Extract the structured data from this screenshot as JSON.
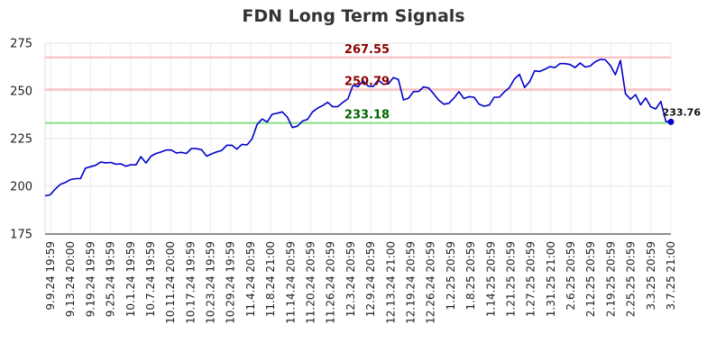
{
  "chart_data": {
    "type": "line",
    "title": "FDN Long Term Signals",
    "ylim": [
      175,
      275
    ],
    "yticks": [
      175,
      200,
      225,
      250,
      275
    ],
    "grid": true,
    "xticks": [
      "9.9.24 19:59",
      "9.13.24 20:00",
      "9.19.24 19:59",
      "9.25.24 19:59",
      "10.1.24 19:59",
      "10.7.24 19:59",
      "10.11.24 20:00",
      "10.17.24 19:59",
      "10.23.24 19:59",
      "10.29.24 19:59",
      "11.4.24 20:59",
      "11.8.24 21:00",
      "11.14.24 20:59",
      "11.20.24 20:59",
      "11.26.24 20:59",
      "12.3.24 20:59",
      "12.9.24 20:59",
      "12.13.24 21:00",
      "12.19.24 20:59",
      "12.26.24 20:59",
      "1.2.25 20:59",
      "1.8.25 20:59",
      "1.14.25 20:59",
      "1.21.25 20:59",
      "1.27.25 20:59",
      "1.31.25 21:00",
      "2.6.25 20:59",
      "2.12.25 20:59",
      "2.19.25 20:59",
      "2.25.25 20:59",
      "3.3.25 20:59",
      "3.7.25 21:00"
    ],
    "series": [
      {
        "color": "#0000cc",
        "values": [
          195,
          195.5,
          198.5,
          201,
          202,
          203.5,
          204,
          204,
          209.5,
          210.3,
          211,
          212.7,
          212.3,
          212.5,
          211.6,
          211.8,
          210.5,
          211.3,
          211.2,
          215.5,
          212.2,
          215.8,
          217.2,
          218,
          219,
          219,
          217.5,
          217.8,
          217.2,
          219.8,
          219.7,
          219.2,
          215.8,
          217,
          218,
          218.8,
          221.5,
          221.5,
          219.5,
          222,
          221.7,
          224.8,
          232.4,
          235.3,
          233.7,
          237.8,
          238.3,
          239,
          236.3,
          230.8,
          231.5,
          234.2,
          235.1,
          239,
          241,
          242.3,
          244,
          241.7,
          241.8,
          244,
          245.8,
          252.9,
          252.2,
          255.3,
          252.5,
          252.3,
          255.7,
          253.5,
          253.7,
          257,
          256,
          245.3,
          246.2,
          249.6,
          249.7,
          252.1,
          251.5,
          248.4,
          245.2,
          243,
          243.5,
          246.2,
          249.6,
          246,
          247,
          246.7,
          243,
          242,
          242.6,
          246.7,
          246.7,
          249.5,
          251.7,
          256.3,
          258.7,
          251.8,
          254.8,
          260.5,
          260.2,
          261.3,
          262.7,
          262.2,
          264.3,
          264.3,
          263.8,
          262.2,
          264.6,
          262.5,
          263,
          265.3,
          266.5,
          266.3,
          263.3,
          258.5,
          266,
          248.5,
          245.6,
          248,
          242.7,
          246.3,
          241.7,
          240.5,
          244.5,
          234,
          233.76
        ]
      }
    ],
    "hlines": [
      {
        "value": 267.55,
        "label": "267.55",
        "line_color": "#ffbbbb",
        "label_color": "#8b0000"
      },
      {
        "value": 250.79,
        "label": "250.79",
        "line_color": "#ffbbbb",
        "label_color": "#8b0000"
      },
      {
        "value": 233.18,
        "label": "233.18",
        "line_color": "#88dd88",
        "label_color": "#006400"
      }
    ],
    "last_value_label": "233.76"
  }
}
